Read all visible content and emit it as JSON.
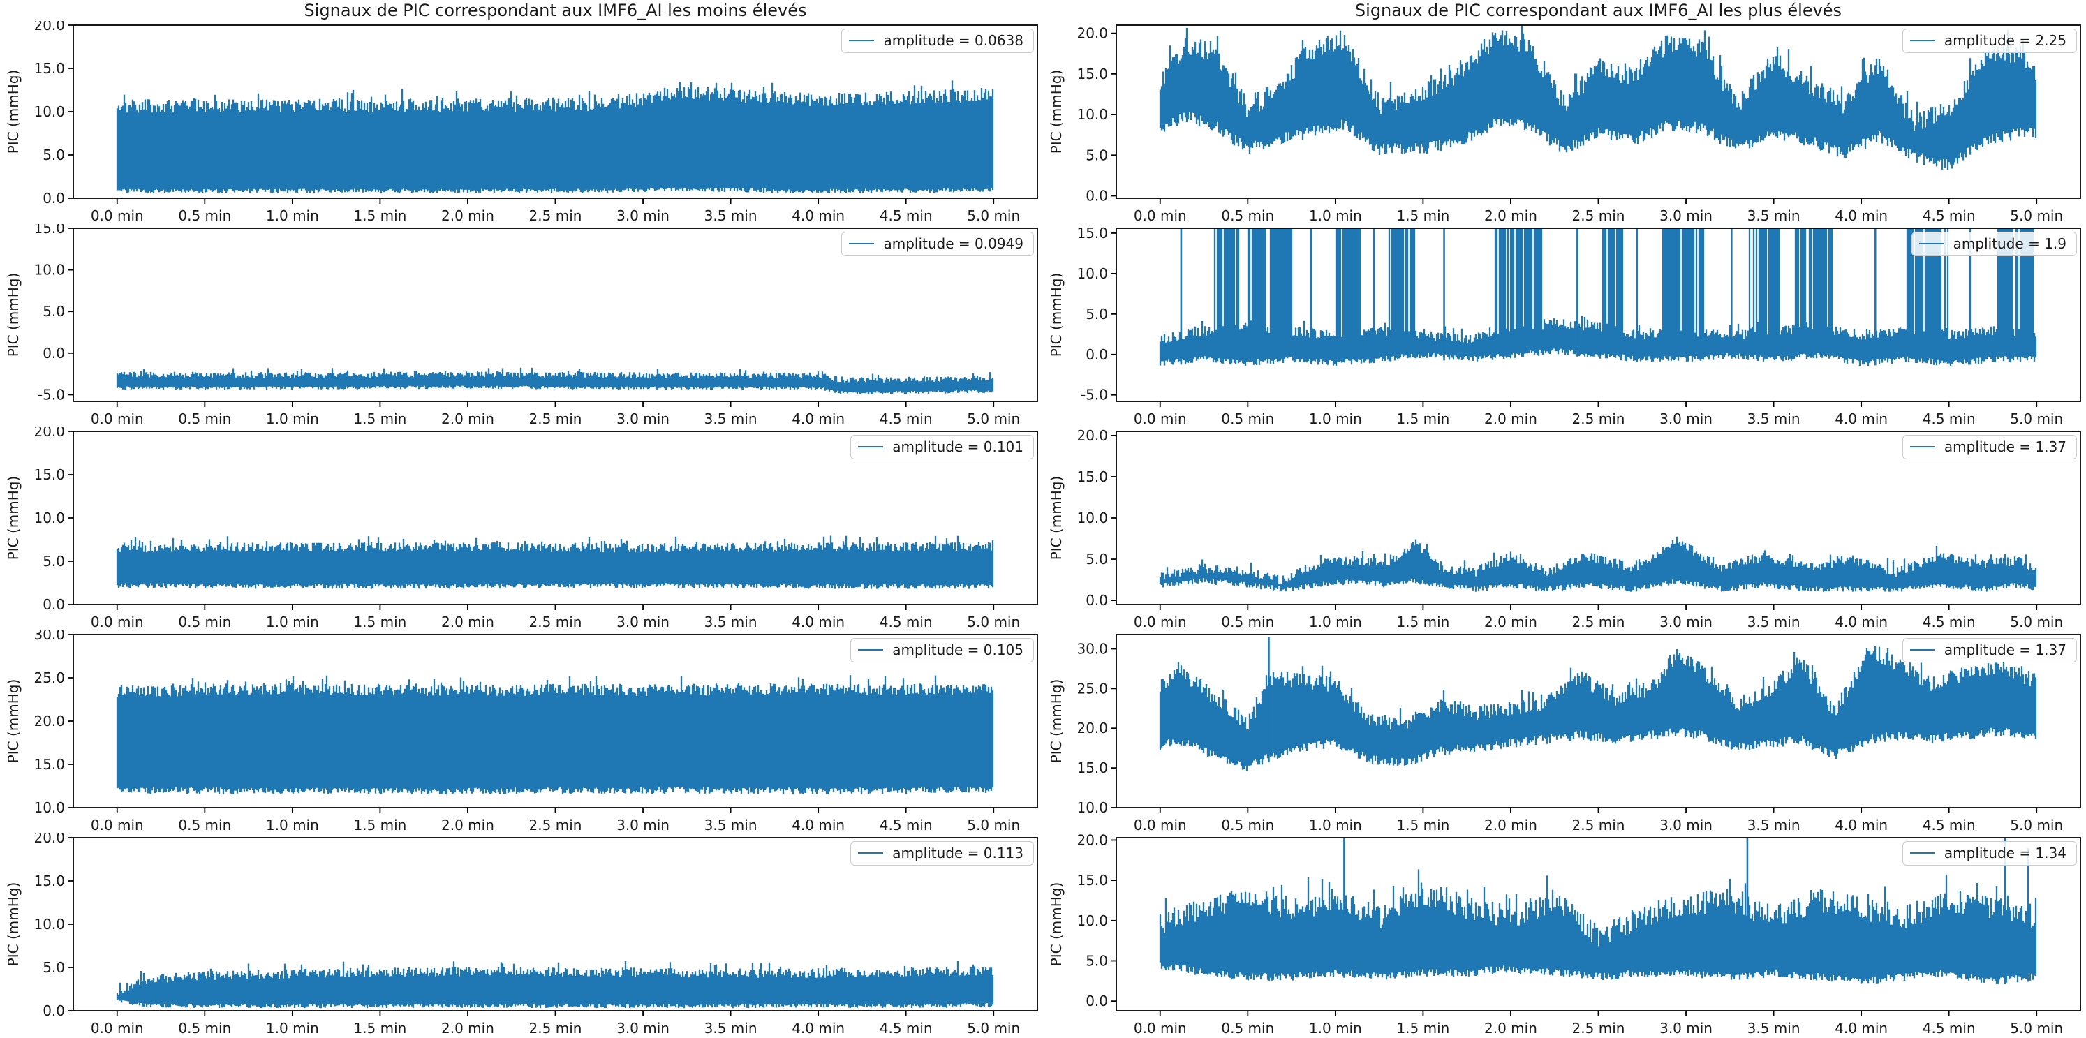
{
  "figure": {
    "left_title": "Signaux de PIC correspondant aux IMF6_AI les moins élevés",
    "right_title": "Signaux de PIC correspondant aux IMF6_AI les plus élevés",
    "line_color": "#1f77b4",
    "background": "#ffffff"
  },
  "chart_data": {
    "type": "line",
    "note": "Dense physiological PIC signals; values below are envelope estimates (lower/upper bounds of the oscillating trace) read off each subplot's axes.",
    "layout": "5 rows x 2 columns",
    "grid": false,
    "legend_position": "upper right",
    "ylabel": "PIC (mmHg)",
    "xlim": [
      -0.25,
      5.25
    ],
    "xticks": [
      0,
      0.5,
      1.0,
      1.5,
      2.0,
      2.5,
      3.0,
      3.5,
      4.0,
      4.5,
      5.0
    ],
    "xtick_labels": [
      "0.0 min",
      "0.5 min",
      "1.0 min",
      "1.5 min",
      "2.0 min",
      "2.5 min",
      "3.0 min",
      "3.5 min",
      "4.0 min",
      "4.5 min",
      "5.0 min"
    ],
    "charts": [
      {
        "id": "r1-left",
        "column": "moins élevés",
        "row": 1,
        "legend": "amplitude = 0.0638",
        "amplitude": 0.0638,
        "ylim": [
          0,
          20
        ],
        "yticks": [
          0,
          5,
          10,
          15,
          20
        ],
        "ytick_labels": [
          "0.0",
          "5.0",
          "10.0",
          "15.0",
          "20.0"
        ],
        "envelope": {
          "x": [
            0,
            0.5,
            1.0,
            1.5,
            2.0,
            2.5,
            2.8,
            3.0,
            3.2,
            3.5,
            3.8,
            4.0,
            4.5,
            5.0
          ],
          "hi": [
            11.4,
            11.5,
            11.5,
            11.5,
            11.6,
            11.6,
            11.7,
            12.3,
            13.2,
            12.7,
            12.3,
            12.2,
            12.4,
            12.8
          ],
          "lo": [
            0.6,
            0.6,
            0.6,
            0.6,
            0.6,
            0.6,
            0.6,
            0.7,
            0.8,
            0.7,
            0.6,
            0.6,
            0.6,
            0.7
          ]
        },
        "jitter": [
          1.6,
          0.5
        ]
      },
      {
        "id": "r1-right",
        "column": "plus élevés",
        "row": 1,
        "legend": "amplitude = 2.25",
        "amplitude": 2.25,
        "ylim": [
          -0.3,
          21
        ],
        "yticks": [
          0,
          5,
          10,
          15,
          20
        ],
        "ytick_labels": [
          "0.0",
          "5.0",
          "10.0",
          "15.0",
          "20.0"
        ],
        "envelope": {
          "x": [
            0,
            0.15,
            0.3,
            0.5,
            0.65,
            0.85,
            1.05,
            1.25,
            1.5,
            1.7,
            1.9,
            2.1,
            2.3,
            2.5,
            2.7,
            2.9,
            3.1,
            3.3,
            3.5,
            3.7,
            3.9,
            4.1,
            4.3,
            4.5,
            4.7,
            4.9,
            5.0
          ],
          "hi": [
            15,
            20,
            19,
            12,
            14,
            19,
            20.5,
            12.5,
            14,
            16,
            20.5,
            20,
            12.5,
            17,
            16,
            20,
            19,
            12.5,
            18,
            15,
            12.5,
            17.5,
            10,
            12,
            18,
            19,
            16
          ],
          "lo": [
            7.5,
            9,
            8,
            5,
            6,
            7,
            8,
            5,
            5,
            6,
            8,
            8,
            5,
            7,
            6,
            8,
            7.5,
            5,
            7,
            6,
            4.5,
            6.5,
            4,
            3,
            6,
            7,
            7
          ]
        },
        "jitter": [
          2.5,
          1.5
        ]
      },
      {
        "id": "r2-left",
        "column": "moins élevés",
        "row": 2,
        "legend": "amplitude = 0.0949",
        "amplitude": 0.0949,
        "ylim": [
          -5.8,
          15
        ],
        "yticks": [
          -5,
          0,
          5,
          10,
          15
        ],
        "ytick_labels": [
          "-5.0",
          "0.0",
          "5.0",
          "10.0",
          "15.0"
        ],
        "envelope": {
          "x": [
            0,
            1,
            2,
            3,
            4.0,
            4.15,
            4.6,
            5.0
          ],
          "hi": [
            -2.2,
            -2.3,
            -2.2,
            -2.3,
            -2.3,
            -2.9,
            -2.8,
            -2.6
          ],
          "lo": [
            -4.4,
            -4.4,
            -4.3,
            -4.4,
            -4.4,
            -5.0,
            -4.9,
            -4.8
          ]
        },
        "jitter": [
          0.7,
          0.4
        ]
      },
      {
        "id": "r2-right",
        "column": "plus élevés",
        "row": 2,
        "legend": "amplitude = 1.9",
        "amplitude": 1.9,
        "ylim": [
          -5.8,
          15.6
        ],
        "yticks": [
          -5,
          0,
          5,
          10,
          15
        ],
        "ytick_labels": [
          "-5.0",
          "0.0",
          "5.0",
          "10.0",
          "15.0"
        ],
        "envelope": {
          "x": [
            0,
            0.25,
            0.5,
            0.75,
            1.0,
            1.25,
            1.5,
            1.75,
            2.0,
            2.25,
            2.5,
            2.75,
            3.0,
            3.25,
            3.5,
            3.75,
            4.0,
            4.25,
            4.5,
            4.75,
            5.0
          ],
          "hi": [
            2.5,
            3.5,
            4,
            3.5,
            3,
            3.5,
            3,
            2.5,
            3.5,
            4.5,
            4,
            3,
            3.5,
            3,
            3.5,
            4,
            3,
            3.5,
            3,
            3.5,
            3
          ],
          "lo": [
            -1.5,
            -1,
            -1.5,
            -1,
            -1.5,
            -1,
            -0.5,
            -1,
            -0.5,
            0,
            -0.5,
            -1,
            -1,
            -0.5,
            -1,
            -0.5,
            -1.5,
            -1,
            -1.5,
            -1,
            -1
          ]
        },
        "jitter": [
          1.2,
          0.8
        ],
        "bursts": [
          [
            0.3,
            0.45
          ],
          [
            0.5,
            0.6
          ],
          [
            0.63,
            0.75
          ],
          [
            1.0,
            1.14
          ],
          [
            1.3,
            1.46
          ],
          [
            1.9,
            2.18
          ],
          [
            2.52,
            2.64
          ],
          [
            2.86,
            3.12
          ],
          [
            3.36,
            3.54
          ],
          [
            3.62,
            3.84
          ],
          [
            4.26,
            4.5
          ],
          [
            4.78,
            4.98
          ]
        ],
        "spikes": [
          [
            0.12,
            15.6
          ],
          [
            0.86,
            15.6
          ],
          [
            1.22,
            15.6
          ],
          [
            1.62,
            15.6
          ],
          [
            2.38,
            15.6
          ],
          [
            2.72,
            15.6
          ],
          [
            3.26,
            15.6
          ],
          [
            4.08,
            15.6
          ],
          [
            4.62,
            15.6
          ]
        ]
      },
      {
        "id": "r3-left",
        "column": "moins élevés",
        "row": 3,
        "legend": "amplitude = 0.101",
        "amplitude": 0.101,
        "ylim": [
          0,
          20
        ],
        "yticks": [
          0,
          5,
          10,
          15,
          20
        ],
        "ytick_labels": [
          "0.0",
          "5.0",
          "10.0",
          "15.0",
          "20.0"
        ],
        "envelope": {
          "x": [
            0,
            1,
            2,
            3,
            4,
            5
          ],
          "hi": [
            7.1,
            7.2,
            7.2,
            7.1,
            7.2,
            7.3
          ],
          "lo": [
            1.9,
            1.8,
            1.8,
            1.9,
            1.8,
            1.8
          ]
        },
        "jitter": [
          1.1,
          0.6
        ]
      },
      {
        "id": "r3-right",
        "column": "plus élevés",
        "row": 3,
        "legend": "amplitude = 1.37",
        "amplitude": 1.37,
        "ylim": [
          -0.5,
          20.5
        ],
        "yticks": [
          0,
          5,
          10,
          15,
          20
        ],
        "ytick_labels": [
          "0.0",
          "5.0",
          "10.0",
          "15.0",
          "20.0"
        ],
        "envelope": {
          "x": [
            0,
            0.25,
            0.5,
            0.7,
            0.9,
            1.1,
            1.3,
            1.45,
            1.6,
            1.8,
            2.0,
            2.2,
            2.45,
            2.7,
            2.95,
            3.2,
            3.45,
            3.7,
            3.95,
            4.2,
            4.45,
            4.7,
            4.9,
            5.0
          ],
          "hi": [
            3.5,
            4.5,
            4,
            3,
            5,
            5.5,
            5,
            7.8,
            4.5,
            4,
            6,
            4,
            6,
            4.5,
            7.8,
            4.5,
            6,
            4.5,
            5.5,
            4,
            6,
            5,
            5.5,
            4
          ],
          "lo": [
            1.5,
            2,
            1.5,
            1,
            1.5,
            2,
            1.5,
            2,
            1.5,
            1,
            1.5,
            1,
            1.5,
            1,
            2,
            1,
            1.5,
            1,
            1,
            1,
            1.5,
            1,
            1.5,
            1
          ]
        },
        "jitter": [
          1.2,
          0.7
        ]
      },
      {
        "id": "r4-left",
        "column": "moins élevés",
        "row": 4,
        "legend": "amplitude = 0.105",
        "amplitude": 0.105,
        "ylim": [
          10,
          30
        ],
        "yticks": [
          10,
          15,
          20,
          25,
          30
        ],
        "ytick_labels": [
          "10.0",
          "15.0",
          "20.0",
          "25.0",
          "30.0"
        ],
        "envelope": {
          "x": [
            0,
            1,
            2,
            3,
            4,
            5
          ],
          "hi": [
            24.2,
            24.4,
            24.3,
            24.3,
            24.4,
            24.3
          ],
          "lo": [
            11.6,
            11.5,
            11.5,
            11.6,
            11.5,
            11.6
          ]
        },
        "jitter": [
          1.4,
          0.8
        ]
      },
      {
        "id": "r4-right",
        "column": "plus élevés",
        "row": 4,
        "legend": "amplitude = 1.37",
        "amplitude": 1.37,
        "ylim": [
          10,
          31.8
        ],
        "yticks": [
          10,
          15,
          20,
          25,
          30
        ],
        "ytick_labels": [
          "10.0",
          "15.0",
          "20.0",
          "25.0",
          "30.0"
        ],
        "envelope": {
          "x": [
            0,
            0.1,
            0.3,
            0.5,
            0.65,
            0.8,
            1.0,
            1.2,
            1.4,
            1.6,
            1.8,
            2.0,
            2.2,
            2.4,
            2.6,
            2.8,
            2.95,
            3.1,
            3.3,
            3.5,
            3.65,
            3.85,
            4.05,
            4.2,
            4.4,
            4.6,
            4.8,
            5.0
          ],
          "hi": [
            26,
            28.5,
            25,
            21.5,
            27.5,
            27,
            26.5,
            22,
            21.5,
            24,
            23,
            23.5,
            24,
            27.5,
            24.5,
            26,
            30.5,
            28,
            24,
            26,
            29.5,
            23,
            31,
            29,
            26.5,
            28,
            28.5,
            27
          ],
          "lo": [
            17,
            18,
            16,
            14.5,
            16,
            17,
            17.5,
            15.5,
            15,
            16.5,
            17,
            17.5,
            18,
            18.5,
            18,
            18.5,
            19,
            18.5,
            17,
            17.5,
            18,
            16,
            18,
            18.5,
            18,
            18.5,
            19,
            18.5
          ]
        },
        "jitter": [
          2.0,
          1.2
        ],
        "spikes": [
          [
            0.62,
            31.5
          ]
        ]
      },
      {
        "id": "r5-left",
        "column": "moins élevés",
        "row": 5,
        "legend": "amplitude = 0.113",
        "amplitude": 0.113,
        "ylim": [
          0,
          20
        ],
        "yticks": [
          0,
          5,
          10,
          15,
          20
        ],
        "ytick_labels": [
          "0.0",
          "5.0",
          "10.0",
          "15.0",
          "20.0"
        ],
        "envelope": {
          "x": [
            0,
            0.15,
            0.5,
            1.0,
            1.5,
            2.0,
            2.5,
            3.0,
            3.5,
            4.0,
            4.5,
            5.0
          ],
          "hi": [
            2.5,
            4.2,
            4.6,
            4.8,
            5.0,
            5.1,
            5.0,
            5.0,
            4.9,
            4.9,
            5.0,
            5.2
          ],
          "lo": [
            1.0,
            0.4,
            0.3,
            0.3,
            0.3,
            0.3,
            0.3,
            0.3,
            0.3,
            0.3,
            0.3,
            0.4
          ]
        },
        "jitter": [
          1.1,
          0.5
        ]
      },
      {
        "id": "r5-right",
        "column": "plus élevés",
        "row": 5,
        "legend": "amplitude = 1.34",
        "amplitude": 1.34,
        "ylim": [
          -1.2,
          20.3
        ],
        "yticks": [
          0,
          5,
          10,
          15,
          20
        ],
        "ytick_labels": [
          "0.0",
          "5.0",
          "10.0",
          "15.0",
          "20.0"
        ],
        "envelope": {
          "x": [
            0,
            0.25,
            0.5,
            0.75,
            1.0,
            1.25,
            1.5,
            1.75,
            2.0,
            2.25,
            2.5,
            2.75,
            3.0,
            3.25,
            3.5,
            3.75,
            4.0,
            4.25,
            4.5,
            4.75,
            5.0
          ],
          "hi": [
            11,
            13,
            14.5,
            13,
            14,
            12,
            15,
            13,
            12,
            14,
            9.5,
            12,
            13.5,
            14,
            12,
            14,
            13,
            12,
            14,
            13,
            12
          ],
          "lo": [
            4,
            3,
            2.5,
            2.5,
            3,
            2.5,
            3,
            3,
            3.5,
            3,
            2.5,
            3,
            3,
            2.5,
            3,
            2.5,
            2,
            2.5,
            3,
            2,
            2.5
          ]
        },
        "jitter": [
          3.0,
          1.0
        ],
        "spikes": [
          [
            1.05,
            20.3
          ],
          [
            3.35,
            20.3
          ],
          [
            4.82,
            20.3
          ],
          [
            4.95,
            19
          ]
        ]
      }
    ]
  }
}
